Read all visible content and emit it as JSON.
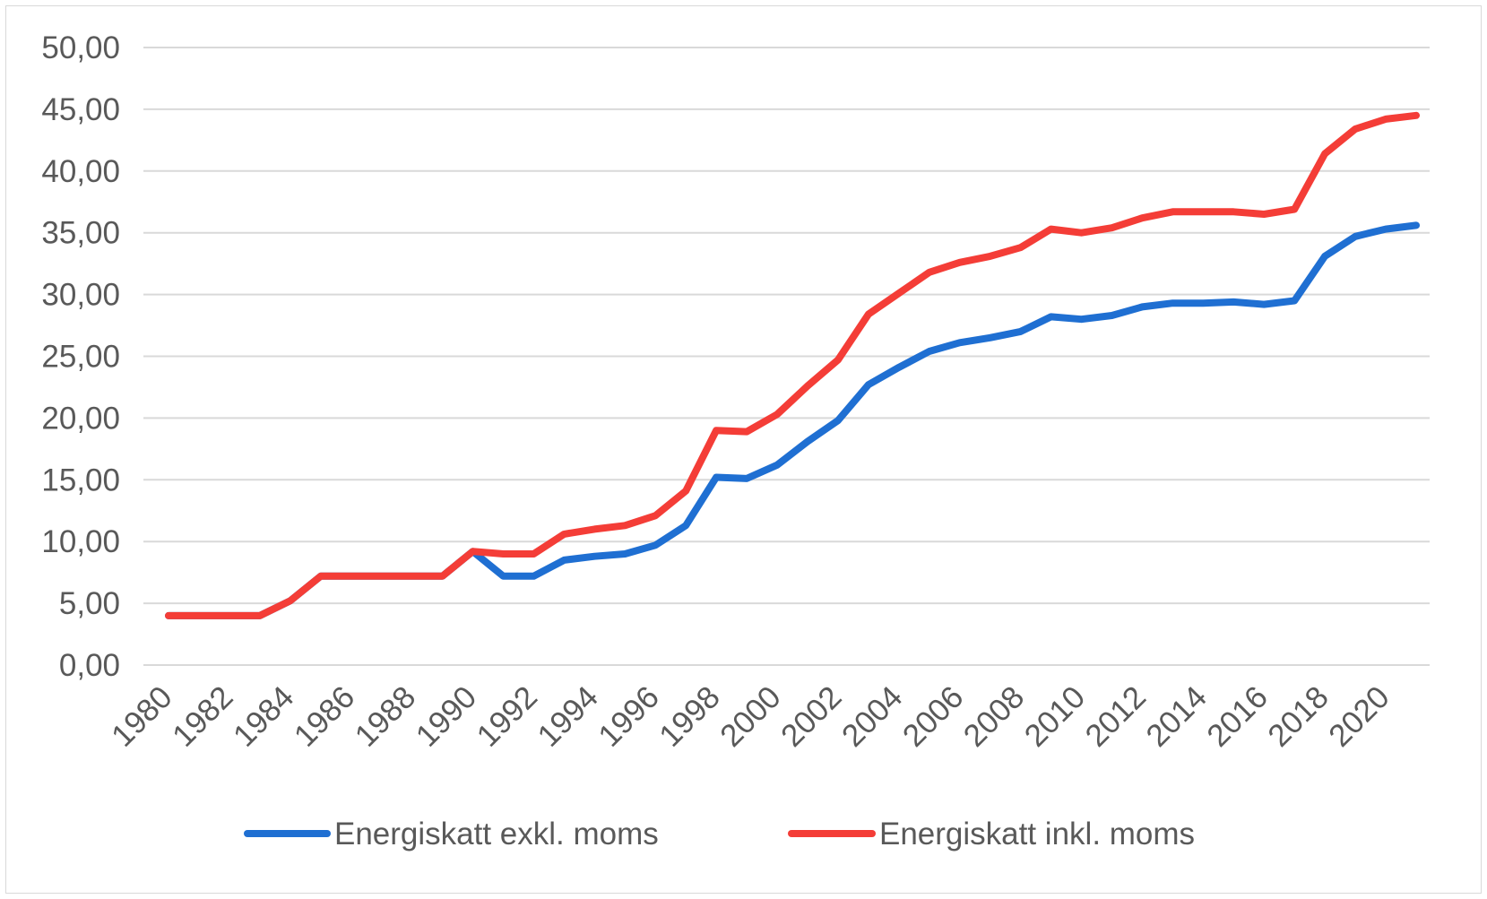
{
  "chart_data": {
    "type": "line",
    "title": "",
    "xlabel": "",
    "ylabel": "",
    "x": [
      1980,
      1981,
      1982,
      1983,
      1984,
      1985,
      1986,
      1987,
      1988,
      1989,
      1990,
      1991,
      1992,
      1993,
      1994,
      1995,
      1996,
      1997,
      1998,
      1999,
      2000,
      2001,
      2002,
      2003,
      2004,
      2005,
      2006,
      2007,
      2008,
      2009,
      2010,
      2011,
      2012,
      2013,
      2014,
      2015,
      2016,
      2017,
      2018,
      2019,
      2020,
      2021
    ],
    "x_tick_labels": [
      "1980",
      "1982",
      "1984",
      "1986",
      "1988",
      "1990",
      "1992",
      "1994",
      "1996",
      "1998",
      "2000",
      "2002",
      "2004",
      "2006",
      "2008",
      "2010",
      "2012",
      "2014",
      "2016",
      "2018",
      "2020"
    ],
    "y_tick_labels": [
      "0,00",
      "5,00",
      "10,00",
      "15,00",
      "20,00",
      "25,00",
      "30,00",
      "35,00",
      "40,00",
      "45,00",
      "50,00"
    ],
    "ylim": [
      0,
      50
    ],
    "xlim": [
      1980,
      2021
    ],
    "grid": "horizontal",
    "legend_position": "bottom",
    "series": [
      {
        "name": "Energiskatt exkl. moms",
        "color": "#1f6fd2",
        "values": [
          4.0,
          4.0,
          4.0,
          4.0,
          5.2,
          7.2,
          7.2,
          7.2,
          7.2,
          7.2,
          9.2,
          7.2,
          7.2,
          8.5,
          8.8,
          9.0,
          9.7,
          11.3,
          15.2,
          15.1,
          16.2,
          18.1,
          19.8,
          22.7,
          24.1,
          25.4,
          26.1,
          26.5,
          27.0,
          28.2,
          28.0,
          28.3,
          29.0,
          29.3,
          29.3,
          29.4,
          29.2,
          29.5,
          33.1,
          34.7,
          35.3,
          35.6
        ]
      },
      {
        "name": "Energiskatt inkl. moms",
        "color": "#f43d37",
        "values": [
          4.0,
          4.0,
          4.0,
          4.0,
          5.2,
          7.2,
          7.2,
          7.2,
          7.2,
          7.2,
          9.2,
          9.0,
          9.0,
          10.6,
          11.0,
          11.3,
          12.1,
          14.1,
          19.0,
          18.9,
          20.3,
          22.6,
          24.7,
          28.4,
          30.1,
          31.8,
          32.6,
          33.1,
          33.8,
          35.3,
          35.0,
          35.4,
          36.2,
          36.7,
          36.7,
          36.7,
          36.5,
          36.9,
          41.4,
          43.4,
          44.2,
          44.5
        ]
      }
    ]
  }
}
